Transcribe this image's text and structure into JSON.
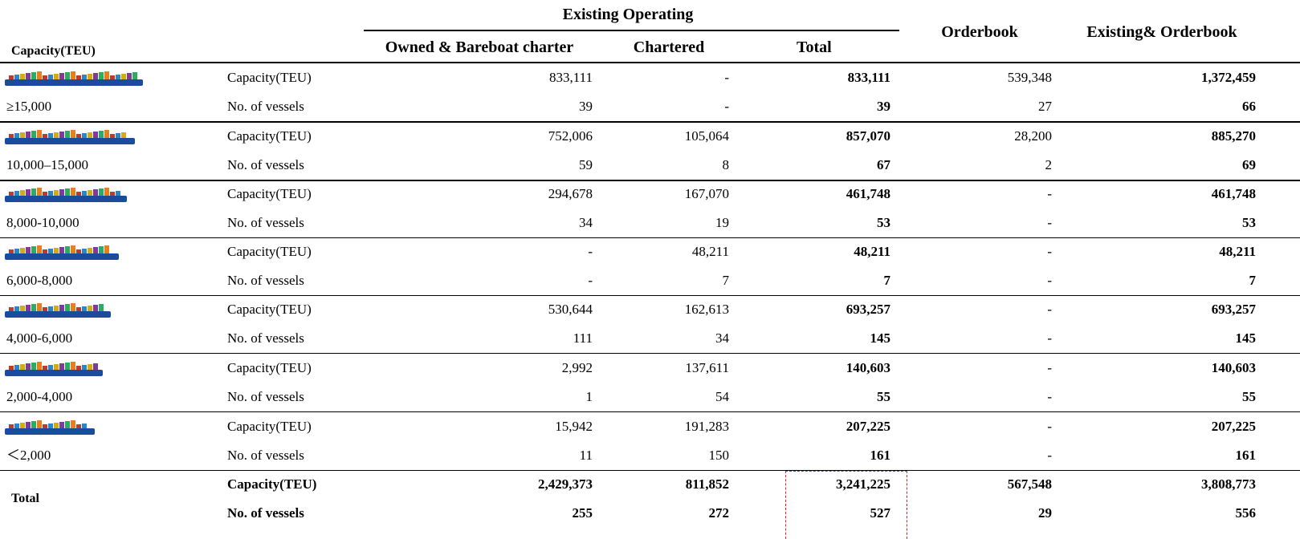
{
  "header": {
    "capacity": "Capacity(TEU)",
    "existing": "Existing Operating",
    "owned": "Owned & Bareboat charter",
    "chartered": "Chartered",
    "total": "Total",
    "orderbook": "Orderbook",
    "combined": "Existing& Orderbook"
  },
  "groups": [
    {
      "range": "≥15,000",
      "rows": [
        [
          "Capacity(TEU)",
          "833,111",
          "-",
          "833,111",
          "539,348",
          "1,372,459"
        ],
        [
          "No. of vessels",
          "39",
          "-",
          "39",
          "27",
          "66"
        ]
      ]
    },
    {
      "range": "10,000–15,000",
      "rows": [
        [
          "Capacity(TEU)",
          "752,006",
          "105,064",
          "857,070",
          "28,200",
          "885,270"
        ],
        [
          "No. of vessels",
          "59",
          "8",
          "67",
          "2",
          "69"
        ]
      ]
    },
    {
      "range": "8,000-10,000",
      "rows": [
        [
          "Capacity(TEU)",
          "294,678",
          "167,070",
          "461,748",
          "-",
          "461,748"
        ],
        [
          "No. of vessels",
          "34",
          "19",
          "53",
          "-",
          "53"
        ]
      ]
    },
    {
      "range": "6,000-8,000",
      "rows": [
        [
          "Capacity(TEU)",
          "-",
          "48,211",
          "48,211",
          "-",
          "48,211"
        ],
        [
          "No. of vessels",
          "-",
          "7",
          "7",
          "-",
          "7"
        ]
      ]
    },
    {
      "range": "4,000-6,000",
      "rows": [
        [
          "Capacity(TEU)",
          "530,644",
          "162,613",
          "693,257",
          "-",
          "693,257"
        ],
        [
          "No. of vessels",
          "111",
          "34",
          "145",
          "-",
          "145"
        ]
      ]
    },
    {
      "range": "2,000-4,000",
      "rows": [
        [
          "Capacity(TEU)",
          "2,992",
          "137,611",
          "140,603",
          "-",
          "140,603"
        ],
        [
          "No. of vessels",
          "1",
          "54",
          "55",
          "-",
          "55"
        ]
      ]
    },
    {
      "range": "＜2,000",
      "rows": [
        [
          "Capacity(TEU)",
          "15,942",
          "191,283",
          "207,225",
          "-",
          "207,225"
        ],
        [
          "No. of vessels",
          "11",
          "150",
          "161",
          "-",
          "161"
        ]
      ]
    }
  ],
  "total": {
    "label": "Total",
    "rows": [
      [
        "Capacity(TEU)",
        "2,429,373",
        "811,852",
        "3,241,225",
        "567,548",
        "3,808,773"
      ],
      [
        "No. of vessels",
        "255",
        "272",
        "527",
        "29",
        "556"
      ]
    ]
  }
}
